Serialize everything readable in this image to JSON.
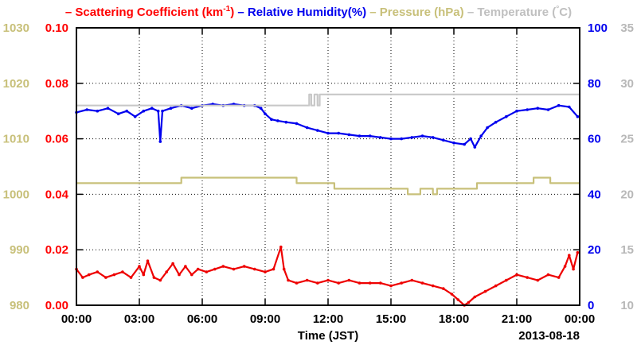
{
  "chart_data": {
    "type": "line",
    "legend": [
      {
        "name": "Scattering Coefficient (km",
        "sup": "-1",
        "close": ")",
        "color": "#ff0000"
      },
      {
        "name": "Relative Humidity(%)",
        "color": "#0000ee"
      },
      {
        "name": "Pressure (hPa)",
        "color": "#c8c07a"
      },
      {
        "name": "Temperature (",
        "sup": "°",
        "close": "C)",
        "color": "#c0c0c0"
      }
    ],
    "xlabel": "Time (JST)",
    "date_label": "2013-08-18",
    "x_ticks": [
      "00:00",
      "03:00",
      "06:00",
      "09:00",
      "12:00",
      "15:00",
      "18:00",
      "21:00",
      "00:00"
    ],
    "x_range_hours": [
      0,
      24
    ],
    "axes": {
      "pressure": {
        "ticks": [
          "980",
          "990",
          "1000",
          "1010",
          "1020",
          "1030"
        ],
        "range": [
          980,
          1030
        ],
        "color": "#c8c07a"
      },
      "scattering": {
        "ticks": [
          "0.00",
          "0.02",
          "0.04",
          "0.06",
          "0.08",
          "0.10"
        ],
        "range": [
          0,
          0.1
        ],
        "color": "#ff0000"
      },
      "humidity": {
        "ticks": [
          "0",
          "20",
          "40",
          "60",
          "80",
          "100"
        ],
        "range": [
          0,
          100
        ],
        "color": "#0000ee"
      },
      "temperature": {
        "ticks": [
          "10",
          "15",
          "20",
          "25",
          "30",
          "35"
        ],
        "range": [
          10,
          35
        ],
        "color": "#b8b8b8"
      }
    },
    "grid": true,
    "series": [
      {
        "name": "Relative Humidity(%)",
        "axis": "humidity",
        "color": "#0000ee",
        "step": false,
        "markers": true,
        "points": [
          [
            0,
            69.5
          ],
          [
            0.5,
            70.5
          ],
          [
            1,
            70
          ],
          [
            1.5,
            71
          ],
          [
            2,
            69
          ],
          [
            2.4,
            70
          ],
          [
            2.8,
            68
          ],
          [
            3.2,
            70
          ],
          [
            3.6,
            71
          ],
          [
            3.9,
            70
          ],
          [
            4.0,
            59
          ],
          [
            4.1,
            70
          ],
          [
            4.5,
            71
          ],
          [
            5.0,
            72
          ],
          [
            5.5,
            71
          ],
          [
            6.0,
            72
          ],
          [
            6.5,
            72.5
          ],
          [
            7.0,
            72
          ],
          [
            7.5,
            72.5
          ],
          [
            8.0,
            72
          ],
          [
            8.5,
            72
          ],
          [
            8.8,
            71
          ],
          [
            9.0,
            69
          ],
          [
            9.3,
            67
          ],
          [
            9.6,
            66.5
          ],
          [
            10.0,
            66
          ],
          [
            10.5,
            65.5
          ],
          [
            11.0,
            64
          ],
          [
            11.5,
            63
          ],
          [
            12.0,
            62
          ],
          [
            12.5,
            62
          ],
          [
            13.0,
            61.5
          ],
          [
            13.5,
            61
          ],
          [
            14.0,
            61
          ],
          [
            14.5,
            60.5
          ],
          [
            15.0,
            60
          ],
          [
            15.5,
            60
          ],
          [
            16.0,
            60.5
          ],
          [
            16.5,
            61
          ],
          [
            17.0,
            60.5
          ],
          [
            17.5,
            59.5
          ],
          [
            18.0,
            58.5
          ],
          [
            18.5,
            58
          ],
          [
            18.8,
            60
          ],
          [
            19.0,
            57
          ],
          [
            19.3,
            61
          ],
          [
            19.6,
            64
          ],
          [
            20.0,
            66
          ],
          [
            20.5,
            68
          ],
          [
            21.0,
            70
          ],
          [
            21.5,
            70.5
          ],
          [
            22.0,
            71
          ],
          [
            22.5,
            70.5
          ],
          [
            23.0,
            72
          ],
          [
            23.5,
            71.5
          ],
          [
            23.9,
            68
          ]
        ]
      },
      {
        "name": "Temperature",
        "axis": "temperature",
        "color": "#c8c8c8",
        "step": true,
        "markers": false,
        "points": [
          [
            0,
            28
          ],
          [
            10.9,
            28
          ],
          [
            11.1,
            29
          ],
          [
            11.2,
            28
          ],
          [
            11.35,
            29
          ],
          [
            11.5,
            28
          ],
          [
            11.6,
            29
          ],
          [
            24,
            29
          ]
        ]
      },
      {
        "name": "Pressure (hPa)",
        "axis": "pressure",
        "color": "#c8c07a",
        "step": true,
        "markers": false,
        "points": [
          [
            0,
            1002
          ],
          [
            5.0,
            1003
          ],
          [
            10.5,
            1002
          ],
          [
            12.3,
            1001
          ],
          [
            15.8,
            1000
          ],
          [
            16.4,
            1001
          ],
          [
            17.0,
            1000
          ],
          [
            17.2,
            1001
          ],
          [
            18.0,
            1001
          ],
          [
            18.5,
            1001
          ],
          [
            19.1,
            1002
          ],
          [
            21.8,
            1003
          ],
          [
            22.6,
            1002
          ],
          [
            24,
            1002
          ]
        ]
      },
      {
        "name": "Scattering Coefficient",
        "axis": "scattering",
        "color": "#ee0000",
        "step": false,
        "markers": true,
        "points": [
          [
            0,
            0.013
          ],
          [
            0.3,
            0.01
          ],
          [
            0.6,
            0.011
          ],
          [
            1.0,
            0.012
          ],
          [
            1.4,
            0.01
          ],
          [
            1.8,
            0.011
          ],
          [
            2.2,
            0.012
          ],
          [
            2.6,
            0.01
          ],
          [
            3.0,
            0.014
          ],
          [
            3.2,
            0.011
          ],
          [
            3.4,
            0.016
          ],
          [
            3.7,
            0.01
          ],
          [
            4.0,
            0.009
          ],
          [
            4.3,
            0.012
          ],
          [
            4.6,
            0.015
          ],
          [
            4.9,
            0.011
          ],
          [
            5.2,
            0.014
          ],
          [
            5.5,
            0.011
          ],
          [
            5.8,
            0.013
          ],
          [
            6.2,
            0.012
          ],
          [
            6.6,
            0.013
          ],
          [
            7.0,
            0.014
          ],
          [
            7.5,
            0.013
          ],
          [
            8.0,
            0.014
          ],
          [
            8.5,
            0.013
          ],
          [
            9.0,
            0.012
          ],
          [
            9.4,
            0.013
          ],
          [
            9.75,
            0.021
          ],
          [
            9.9,
            0.013
          ],
          [
            10.1,
            0.009
          ],
          [
            10.5,
            0.008
          ],
          [
            11.0,
            0.009
          ],
          [
            11.5,
            0.008
          ],
          [
            12.0,
            0.009
          ],
          [
            12.5,
            0.008
          ],
          [
            13.0,
            0.009
          ],
          [
            13.5,
            0.008
          ],
          [
            14.0,
            0.008
          ],
          [
            14.5,
            0.008
          ],
          [
            15.0,
            0.007
          ],
          [
            15.5,
            0.008
          ],
          [
            16.0,
            0.009
          ],
          [
            16.5,
            0.008
          ],
          [
            17.0,
            0.007
          ],
          [
            17.5,
            0.006
          ],
          [
            17.9,
            0.004
          ],
          [
            18.2,
            0.002
          ],
          [
            18.5,
            0.0
          ],
          [
            18.7,
            0.001
          ],
          [
            19.0,
            0.003
          ],
          [
            19.5,
            0.005
          ],
          [
            20.0,
            0.007
          ],
          [
            20.5,
            0.009
          ],
          [
            21.0,
            0.011
          ],
          [
            21.5,
            0.01
          ],
          [
            22.0,
            0.009
          ],
          [
            22.5,
            0.011
          ],
          [
            23.0,
            0.01
          ],
          [
            23.3,
            0.014
          ],
          [
            23.5,
            0.018
          ],
          [
            23.7,
            0.013
          ],
          [
            23.9,
            0.019
          ]
        ]
      }
    ]
  }
}
